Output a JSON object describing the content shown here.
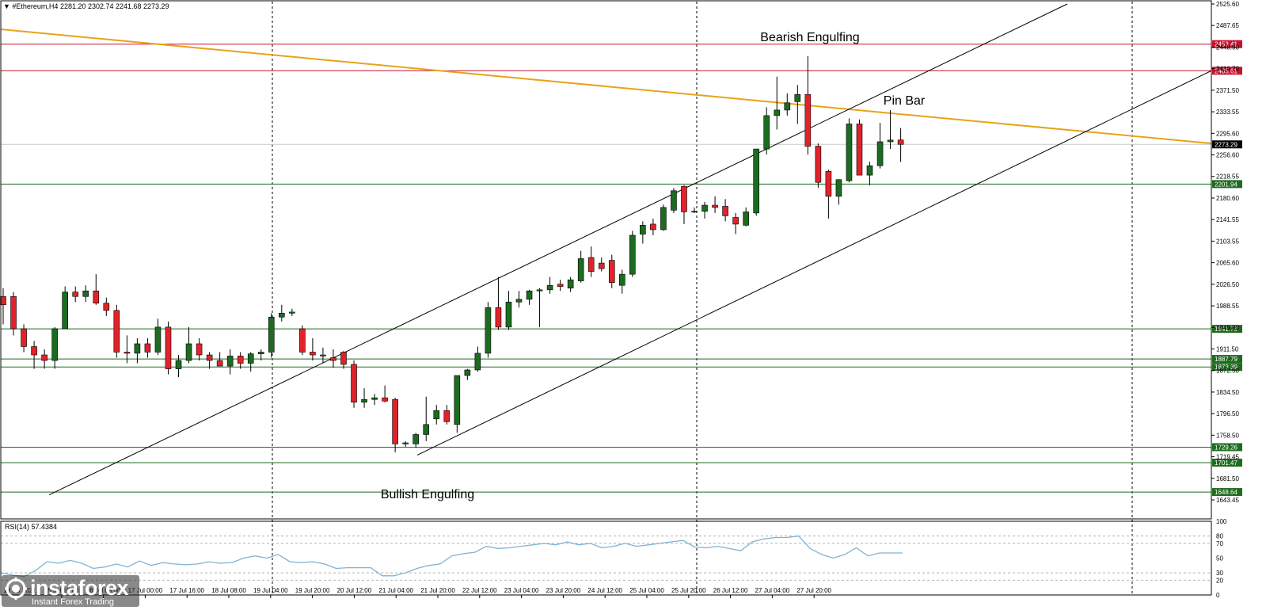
{
  "chart_data": {
    "type": "candlestick",
    "header": "▼ #Ethereum,H4  2281.20 2302.74 2241.68 2273.29",
    "price_axis": {
      "ylim": [
        1630,
        2540
      ],
      "ticks": [
        "2525.60",
        "2487.65",
        "2448.90",
        "2410.70",
        "2371.50",
        "2333.55",
        "2295.60",
        "2256.60",
        "2218.55",
        "2180.60",
        "2141.55",
        "2103.55",
        "2065.60",
        "2026.50",
        "1988.55",
        "1949.80",
        "1911.50",
        "1872.50",
        "1834.50",
        "1796.50",
        "1758.50",
        "1719.45",
        "1681.50",
        "1643.45"
      ]
    },
    "time_axis": {
      "labels": [
        "13 Jul 2021",
        "15 Jul 16:00",
        "16 Jul 08:00",
        "17 Jul 00:00",
        "17 Jul 16:00",
        "18 Jul 08:00",
        "19 Jul 04:00",
        "19 Jul 20:00",
        "20 Jul 12:00",
        "21 Jul 04:00",
        "21 Jul 20:00",
        "22 Jul 12:00",
        "23 Jul 04:00",
        "23 Jul 20:00",
        "24 Jul 12:00",
        "25 Jul 04:00",
        "25 Jul 20:00",
        "26 Jul 12:00",
        "27 Jul 04:00",
        "27 Jul 20:00"
      ]
    },
    "candles": [
      {
        "o": 2000,
        "h": 2015,
        "l": 1950,
        "c": 1985
      },
      {
        "o": 2000,
        "h": 2008,
        "l": 1930,
        "c": 1942
      },
      {
        "o": 1942,
        "h": 1950,
        "l": 1900,
        "c": 1910
      },
      {
        "o": 1910,
        "h": 1920,
        "l": 1870,
        "c": 1895
      },
      {
        "o": 1895,
        "h": 1905,
        "l": 1870,
        "c": 1885
      },
      {
        "o": 1885,
        "h": 1945,
        "l": 1870,
        "c": 1942
      },
      {
        "o": 1942,
        "h": 2018,
        "l": 1942,
        "c": 2008
      },
      {
        "o": 2008,
        "h": 2018,
        "l": 1990,
        "c": 2000
      },
      {
        "o": 2000,
        "h": 2020,
        "l": 1990,
        "c": 2010
      },
      {
        "o": 2010,
        "h": 2040,
        "l": 1985,
        "c": 1988
      },
      {
        "o": 1988,
        "h": 1998,
        "l": 1965,
        "c": 1975
      },
      {
        "o": 1975,
        "h": 1985,
        "l": 1890,
        "c": 1900
      },
      {
        "o": 1900,
        "h": 1930,
        "l": 1880,
        "c": 1898
      },
      {
        "o": 1898,
        "h": 1925,
        "l": 1880,
        "c": 1915
      },
      {
        "o": 1915,
        "h": 1925,
        "l": 1890,
        "c": 1900
      },
      {
        "o": 1900,
        "h": 1960,
        "l": 1895,
        "c": 1945
      },
      {
        "o": 1945,
        "h": 1955,
        "l": 1860,
        "c": 1870
      },
      {
        "o": 1870,
        "h": 1895,
        "l": 1855,
        "c": 1885
      },
      {
        "o": 1885,
        "h": 1945,
        "l": 1880,
        "c": 1915
      },
      {
        "o": 1915,
        "h": 1925,
        "l": 1885,
        "c": 1895
      },
      {
        "o": 1895,
        "h": 1900,
        "l": 1870,
        "c": 1885
      },
      {
        "o": 1885,
        "h": 1900,
        "l": 1875,
        "c": 1875
      },
      {
        "o": 1875,
        "h": 1905,
        "l": 1860,
        "c": 1893
      },
      {
        "o": 1893,
        "h": 1900,
        "l": 1870,
        "c": 1880
      },
      {
        "o": 1880,
        "h": 1900,
        "l": 1865,
        "c": 1897
      },
      {
        "o": 1897,
        "h": 1905,
        "l": 1885,
        "c": 1900
      },
      {
        "o": 1900,
        "h": 1970,
        "l": 1890,
        "c": 1963
      },
      {
        "o": 1963,
        "h": 1985,
        "l": 1955,
        "c": 1970
      },
      {
        "o": 1970,
        "h": 1978,
        "l": 1965,
        "c": 1972
      },
      {
        "o": 1942,
        "h": 1948,
        "l": 1895,
        "c": 1900
      },
      {
        "o": 1900,
        "h": 1925,
        "l": 1885,
        "c": 1895
      },
      {
        "o": 1895,
        "h": 1908,
        "l": 1880,
        "c": 1893
      },
      {
        "o": 1890,
        "h": 1905,
        "l": 1872,
        "c": 1885
      },
      {
        "o": 1900,
        "h": 1902,
        "l": 1870,
        "c": 1878
      },
      {
        "o": 1878,
        "h": 1885,
        "l": 1800,
        "c": 1810
      },
      {
        "o": 1810,
        "h": 1835,
        "l": 1800,
        "c": 1815
      },
      {
        "o": 1815,
        "h": 1825,
        "l": 1805,
        "c": 1818
      },
      {
        "o": 1818,
        "h": 1840,
        "l": 1810,
        "c": 1812
      },
      {
        "o": 1815,
        "h": 1818,
        "l": 1720,
        "c": 1735
      },
      {
        "o": 1737,
        "h": 1740,
        "l": 1730,
        "c": 1735
      },
      {
        "o": 1735,
        "h": 1755,
        "l": 1728,
        "c": 1752
      },
      {
        "o": 1752,
        "h": 1820,
        "l": 1740,
        "c": 1770
      },
      {
        "o": 1780,
        "h": 1805,
        "l": 1770,
        "c": 1795
      },
      {
        "o": 1795,
        "h": 1805,
        "l": 1770,
        "c": 1775
      },
      {
        "o": 1770,
        "h": 1858,
        "l": 1755,
        "c": 1858
      },
      {
        "o": 1858,
        "h": 1870,
        "l": 1850,
        "c": 1868
      },
      {
        "o": 1868,
        "h": 1910,
        "l": 1865,
        "c": 1898
      },
      {
        "o": 1898,
        "h": 1990,
        "l": 1890,
        "c": 1980
      },
      {
        "o": 1980,
        "h": 2035,
        "l": 1940,
        "c": 1945
      },
      {
        "o": 1945,
        "h": 2010,
        "l": 1940,
        "c": 1990
      },
      {
        "o": 1990,
        "h": 2010,
        "l": 1980,
        "c": 1995
      },
      {
        "o": 1995,
        "h": 2012,
        "l": 1985,
        "c": 2010
      },
      {
        "o": 2010,
        "h": 2015,
        "l": 1945,
        "c": 2012
      },
      {
        "o": 2012,
        "h": 2035,
        "l": 2005,
        "c": 2020
      },
      {
        "o": 2022,
        "h": 2030,
        "l": 2010,
        "c": 2018
      },
      {
        "o": 2015,
        "h": 2035,
        "l": 2008,
        "c": 2030
      },
      {
        "o": 2028,
        "h": 2082,
        "l": 2025,
        "c": 2068
      },
      {
        "o": 2070,
        "h": 2090,
        "l": 2035,
        "c": 2045
      },
      {
        "o": 2060,
        "h": 2070,
        "l": 2045,
        "c": 2050
      },
      {
        "o": 2065,
        "h": 2075,
        "l": 2015,
        "c": 2025
      },
      {
        "o": 2020,
        "h": 2048,
        "l": 2005,
        "c": 2040
      },
      {
        "o": 2040,
        "h": 2118,
        "l": 2035,
        "c": 2110
      },
      {
        "o": 2112,
        "h": 2135,
        "l": 2095,
        "c": 2128
      },
      {
        "o": 2130,
        "h": 2140,
        "l": 2110,
        "c": 2120
      },
      {
        "o": 2120,
        "h": 2165,
        "l": 2118,
        "c": 2160
      },
      {
        "o": 2155,
        "h": 2195,
        "l": 2150,
        "c": 2190
      },
      {
        "o": 2198,
        "h": 2200,
        "l": 2130,
        "c": 2152
      },
      {
        "o": 2152,
        "h": 2160,
        "l": 2150,
        "c": 2153
      },
      {
        "o": 2153,
        "h": 2170,
        "l": 2140,
        "c": 2164
      },
      {
        "o": 2164,
        "h": 2180,
        "l": 2150,
        "c": 2160
      },
      {
        "o": 2162,
        "h": 2175,
        "l": 2135,
        "c": 2145
      },
      {
        "o": 2142,
        "h": 2150,
        "l": 2112,
        "c": 2130
      },
      {
        "o": 2128,
        "h": 2160,
        "l": 2126,
        "c": 2152
      },
      {
        "o": 2150,
        "h": 2265,
        "l": 2145,
        "c": 2265
      },
      {
        "o": 2265,
        "h": 2340,
        "l": 2255,
        "c": 2325
      },
      {
        "o": 2325,
        "h": 2395,
        "l": 2300,
        "c": 2335
      },
      {
        "o": 2335,
        "h": 2365,
        "l": 2325,
        "c": 2348
      },
      {
        "o": 2350,
        "h": 2380,
        "l": 2310,
        "c": 2363
      },
      {
        "o": 2363,
        "h": 2432,
        "l": 2255,
        "c": 2270
      },
      {
        "o": 2270,
        "h": 2275,
        "l": 2195,
        "c": 2205
      },
      {
        "o": 2225,
        "h": 2228,
        "l": 2140,
        "c": 2180
      },
      {
        "o": 2180,
        "h": 2210,
        "l": 2165,
        "c": 2210
      },
      {
        "o": 2208,
        "h": 2320,
        "l": 2205,
        "c": 2310
      },
      {
        "o": 2310,
        "h": 2318,
        "l": 2220,
        "c": 2218
      },
      {
        "o": 2218,
        "h": 2242,
        "l": 2200,
        "c": 2235
      },
      {
        "o": 2235,
        "h": 2312,
        "l": 2230,
        "c": 2278
      },
      {
        "o": 2278,
        "h": 2335,
        "l": 2265,
        "c": 2281
      },
      {
        "o": 2281.2,
        "h": 2302.74,
        "l": 2241.68,
        "c": 2273.29
      }
    ],
    "levels": [
      {
        "value": 2453.41,
        "label": "2453.41",
        "kind": "resistance",
        "color": "#c8102e"
      },
      {
        "value": 2405.61,
        "label": "2405.61",
        "kind": "resistance",
        "color": "#c8102e"
      },
      {
        "value": 2273.29,
        "label": "2273.29",
        "kind": "current",
        "color": "#111111"
      },
      {
        "value": 2201.94,
        "label": "2201.94",
        "kind": "support",
        "color": "#1f6b1f"
      },
      {
        "value": 1941.78,
        "label": "1941.78",
        "kind": "support",
        "color": "#1f6b1f"
      },
      {
        "value": 1887.79,
        "label": "1887.79",
        "kind": "support",
        "color": "#1f6b1f"
      },
      {
        "value": 1873.39,
        "label": "1873.39",
        "kind": "support",
        "color": "#1f6b1f"
      },
      {
        "value": 1729.26,
        "label": "1729.26",
        "kind": "support",
        "color": "#1f6b1f"
      },
      {
        "value": 1701.47,
        "label": "1701.47",
        "kind": "support",
        "color": "#1f6b1f"
      },
      {
        "value": 1648.64,
        "label": "1648.64",
        "kind": "support",
        "color": "#1f6b1f"
      }
    ],
    "annotations": [
      "Bearish Engulfing",
      "Pin Bar",
      "Bullish Engulfing"
    ],
    "rsi": {
      "label": "RSI(14) 57.4384",
      "ticks": [
        "100",
        "80",
        "70",
        "50",
        "30",
        "20",
        "0"
      ],
      "values": [
        30,
        27,
        25,
        33,
        45,
        43,
        47,
        43,
        36,
        38,
        42,
        38,
        46,
        40,
        44,
        42,
        41,
        42,
        45,
        43,
        44,
        50,
        53,
        50,
        55,
        45,
        44,
        45,
        42,
        36,
        37,
        37,
        37,
        26,
        26,
        30,
        36,
        40,
        42,
        53,
        56,
        58,
        66,
        63,
        64,
        66,
        68,
        70,
        68,
        72,
        68,
        70,
        64,
        66,
        70,
        66,
        68,
        70,
        72,
        74,
        65,
        64,
        66,
        63,
        60,
        72,
        76,
        78,
        78,
        80,
        63,
        55,
        50,
        55,
        64,
        53,
        57,
        57,
        57
      ]
    },
    "colors": {
      "bull": "#1c6b21",
      "bear": "#e2222a",
      "trend": "#e8a317",
      "channel": "#000000",
      "rsi": "#7fb3d5"
    }
  },
  "brand": {
    "name": "instaforex",
    "tagline": "Instant Forex Trading"
  }
}
